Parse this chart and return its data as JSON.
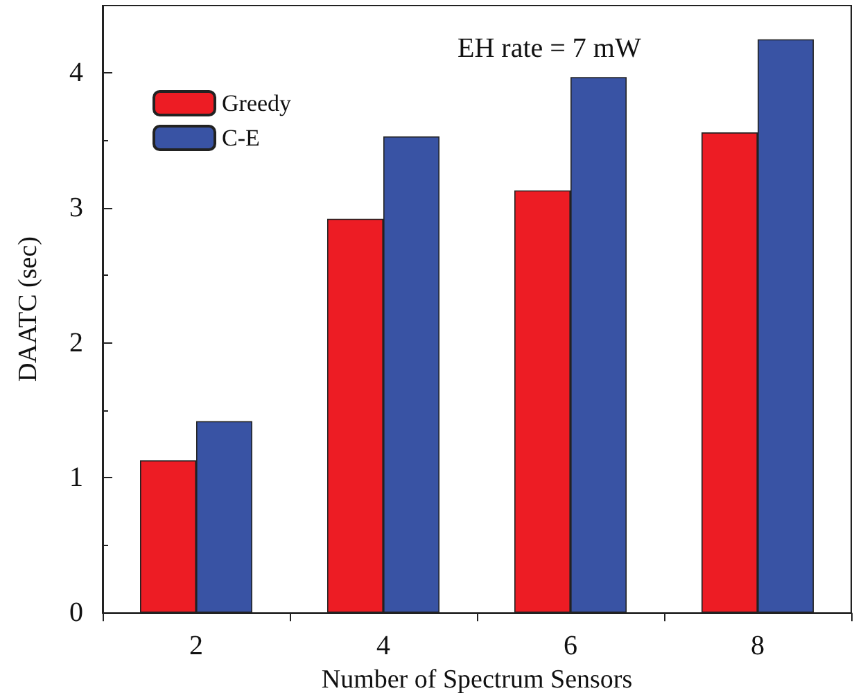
{
  "chart_data": {
    "type": "bar",
    "xlabel": "Number of Spectrum Sensors",
    "ylabel": "DAATC (sec)",
    "annotations": [
      "EH rate = 7 mW"
    ],
    "categories": [
      "2",
      "4",
      "6",
      "8"
    ],
    "series": [
      {
        "name": "Greedy",
        "color": "#ed1c24",
        "values": [
          1.13,
          2.92,
          3.13,
          3.56
        ]
      },
      {
        "name": "C-E",
        "color": "#3953a4",
        "values": [
          1.42,
          3.53,
          3.97,
          4.25
        ]
      }
    ],
    "ylim": [
      0,
      4.5
    ],
    "yticks": [
      0,
      1,
      2,
      3,
      4
    ],
    "grid": false,
    "legend": "top left"
  }
}
